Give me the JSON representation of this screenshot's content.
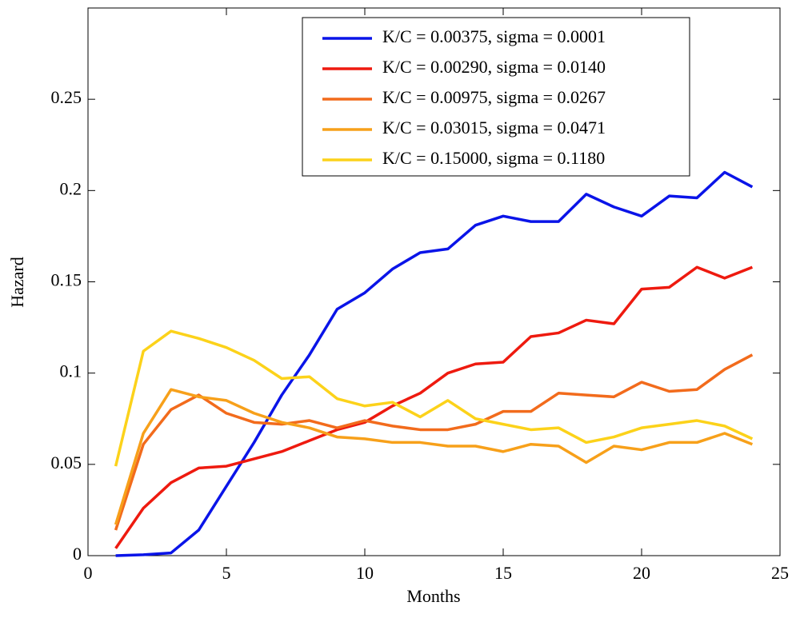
{
  "chart_data": {
    "type": "line",
    "x_label": "Months",
    "y_label": "Hazard",
    "x": [
      1,
      2,
      3,
      4,
      5,
      6,
      7,
      8,
      9,
      10,
      11,
      12,
      13,
      14,
      15,
      16,
      17,
      18,
      19,
      20,
      21,
      22,
      23,
      24
    ],
    "series": [
      {
        "name": "K/C = 0.00375, sigma = 0.0001",
        "color": "#0a14e8",
        "values": [
          0,
          0.0005,
          0.0015,
          0.014,
          0.038,
          0.062,
          0.088,
          0.11,
          0.135,
          0.144,
          0.157,
          0.166,
          0.168,
          0.181,
          0.186,
          0.183,
          0.183,
          0.198,
          0.191,
          0.186,
          0.197,
          0.196,
          0.21,
          0.202
        ]
      },
      {
        "name": "K/C = 0.00290, sigma = 0.0140",
        "color": "#ee1a0f",
        "values": [
          0.004,
          0.026,
          0.04,
          0.048,
          0.049,
          0.053,
          0.057,
          0.063,
          0.069,
          0.073,
          0.082,
          0.089,
          0.1,
          0.105,
          0.106,
          0.12,
          0.122,
          0.129,
          0.127,
          0.146,
          0.147,
          0.158,
          0.152,
          0.158
        ]
      },
      {
        "name": "K/C = 0.00975, sigma = 0.0267",
        "color": "#f26b1c",
        "values": [
          0.014,
          0.061,
          0.08,
          0.088,
          0.078,
          0.073,
          0.072,
          0.074,
          0.07,
          0.074,
          0.071,
          0.069,
          0.069,
          0.072,
          0.079,
          0.079,
          0.089,
          0.088,
          0.087,
          0.095,
          0.09,
          0.091,
          0.102,
          0.11
        ]
      },
      {
        "name": "K/C = 0.03015, sigma = 0.0471",
        "color": "#f7a01a",
        "values": [
          0.017,
          0.067,
          0.091,
          0.087,
          0.085,
          0.078,
          0.073,
          0.07,
          0.065,
          0.064,
          0.062,
          0.062,
          0.06,
          0.06,
          0.057,
          0.061,
          0.06,
          0.051,
          0.06,
          0.058,
          0.062,
          0.062,
          0.067,
          0.061
        ]
      },
      {
        "name": "K/C = 0.15000, sigma = 0.1180",
        "color": "#fcd21a",
        "values": [
          0.049,
          0.112,
          0.123,
          0.119,
          0.114,
          0.107,
          0.097,
          0.098,
          0.086,
          0.082,
          0.084,
          0.076,
          0.085,
          0.075,
          0.072,
          0.069,
          0.07,
          0.062,
          0.065,
          0.07,
          0.072,
          0.074,
          0.071,
          0.064
        ]
      }
    ],
    "xlim": [
      0,
      25
    ],
    "xticks": [
      0,
      5,
      10,
      15,
      20,
      25
    ],
    "ylim": [
      0,
      0.3
    ],
    "yticks": [
      0,
      0.05,
      0.1,
      0.15,
      0.2,
      0.25
    ],
    "grid": false,
    "legend": "upper right"
  }
}
